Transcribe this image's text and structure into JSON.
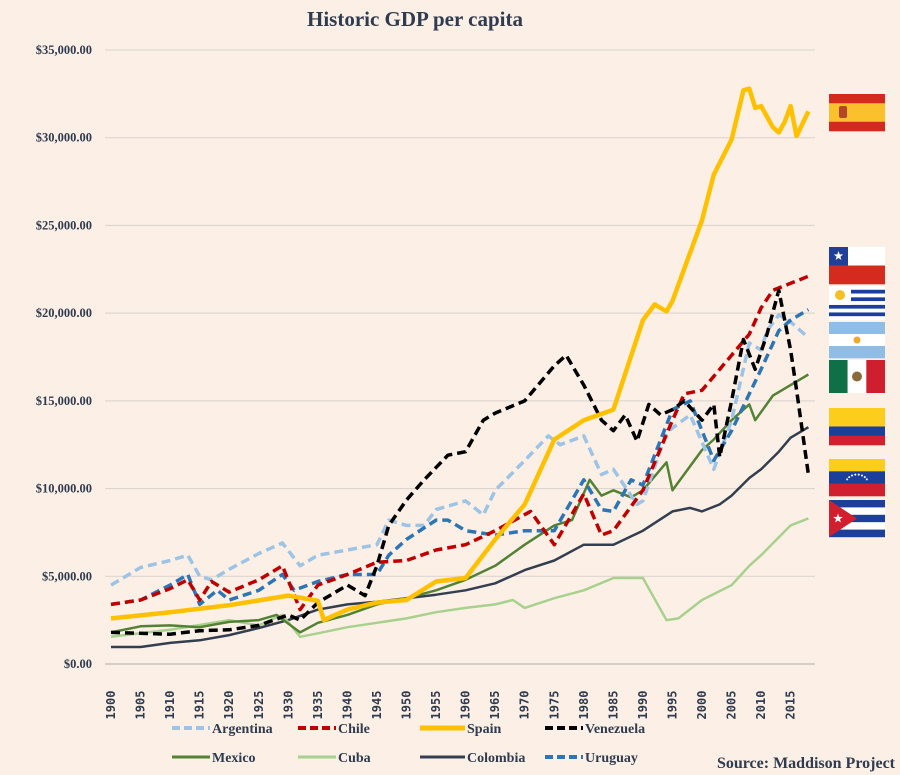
{
  "chart_data": {
    "type": "line",
    "title": "Historic GDP per capita",
    "xlabel": "",
    "ylabel": "",
    "xlim": [
      1900,
      2018
    ],
    "ylim": [
      0,
      35000
    ],
    "y_ticks": [
      "$0.00",
      "$5,000.00",
      "$10,000.00",
      "$15,000.00",
      "$20,000.00",
      "$25,000.00",
      "$30,000.00",
      "$35,000.00"
    ],
    "x_ticks": [
      "1900",
      "1905",
      "1910",
      "1915",
      "1920",
      "1925",
      "1930",
      "1935",
      "1940",
      "1945",
      "1950",
      "1955",
      "1960",
      "1965",
      "1970",
      "1975",
      "1980",
      "1985",
      "1990",
      "1995",
      "2000",
      "2005",
      "2010",
      "2015"
    ],
    "grid": true,
    "legend_placement": "bottom",
    "source": "Source: Maddison Project",
    "series": [
      {
        "name": "Argentina",
        "color": "#9dc3e6",
        "style": "dashed",
        "points": [
          [
            1900,
            4500
          ],
          [
            1905,
            5500
          ],
          [
            1910,
            5900
          ],
          [
            1913,
            6200
          ],
          [
            1915,
            5000
          ],
          [
            1917,
            4800
          ],
          [
            1920,
            5400
          ],
          [
            1925,
            6300
          ],
          [
            1929,
            6900
          ],
          [
            1932,
            5600
          ],
          [
            1935,
            6200
          ],
          [
            1940,
            6500
          ],
          [
            1945,
            6800
          ],
          [
            1947,
            8200
          ],
          [
            1950,
            7900
          ],
          [
            1953,
            7900
          ],
          [
            1955,
            8800
          ],
          [
            1960,
            9300
          ],
          [
            1963,
            8500
          ],
          [
            1965,
            9900
          ],
          [
            1970,
            11600
          ],
          [
            1974,
            13000
          ],
          [
            1976,
            12500
          ],
          [
            1980,
            13000
          ],
          [
            1983,
            10800
          ],
          [
            1985,
            11100
          ],
          [
            1989,
            9100
          ],
          [
            1990,
            9300
          ],
          [
            1994,
            13200
          ],
          [
            1998,
            14200
          ],
          [
            2002,
            11100
          ],
          [
            2005,
            13900
          ],
          [
            2008,
            18300
          ],
          [
            2010,
            17900
          ],
          [
            2011,
            19000
          ],
          [
            2013,
            19900
          ],
          [
            2015,
            19500
          ],
          [
            2018,
            18600
          ]
        ]
      },
      {
        "name": "Chile",
        "color": "#c00000",
        "style": "dashed",
        "points": [
          [
            1900,
            3400
          ],
          [
            1905,
            3650
          ],
          [
            1910,
            4300
          ],
          [
            1913,
            4800
          ],
          [
            1915,
            3650
          ],
          [
            1917,
            4700
          ],
          [
            1920,
            4100
          ],
          [
            1925,
            4800
          ],
          [
            1929,
            5600
          ],
          [
            1932,
            3100
          ],
          [
            1935,
            4500
          ],
          [
            1940,
            5100
          ],
          [
            1945,
            5800
          ],
          [
            1950,
            5900
          ],
          [
            1955,
            6500
          ],
          [
            1960,
            6800
          ],
          [
            1965,
            7600
          ],
          [
            1971,
            8700
          ],
          [
            1975,
            6800
          ],
          [
            1980,
            9700
          ],
          [
            1983,
            7350
          ],
          [
            1985,
            7600
          ],
          [
            1990,
            9900
          ],
          [
            1995,
            13900
          ],
          [
            1997,
            15400
          ],
          [
            2000,
            15600
          ],
          [
            2005,
            17600
          ],
          [
            2008,
            18800
          ],
          [
            2010,
            20300
          ],
          [
            2012,
            21300
          ],
          [
            2015,
            21700
          ],
          [
            2018,
            22100
          ]
        ]
      },
      {
        "name": "Spain",
        "color": "#ffc000",
        "style": "solid",
        "points": [
          [
            1900,
            2600
          ],
          [
            1910,
            2950
          ],
          [
            1920,
            3350
          ],
          [
            1930,
            3900
          ],
          [
            1935,
            3600
          ],
          [
            1936,
            2500
          ],
          [
            1940,
            3100
          ],
          [
            1945,
            3500
          ],
          [
            1950,
            3650
          ],
          [
            1955,
            4700
          ],
          [
            1960,
            4900
          ],
          [
            1965,
            7100
          ],
          [
            1970,
            9100
          ],
          [
            1975,
            12800
          ],
          [
            1980,
            13900
          ],
          [
            1985,
            14500
          ],
          [
            1990,
            19600
          ],
          [
            1992,
            20500
          ],
          [
            1994,
            20100
          ],
          [
            1995,
            20700
          ],
          [
            2000,
            25300
          ],
          [
            2002,
            27900
          ],
          [
            2005,
            29900
          ],
          [
            2007,
            32700
          ],
          [
            2008,
            32800
          ],
          [
            2009,
            31700
          ],
          [
            2010,
            31800
          ],
          [
            2012,
            30600
          ],
          [
            2013,
            30300
          ],
          [
            2014,
            30900
          ],
          [
            2015,
            31800
          ],
          [
            2016,
            30100
          ],
          [
            2018,
            31500
          ]
        ]
      },
      {
        "name": "Venezuela",
        "color": "#000000",
        "style": "dashed",
        "points": [
          [
            1900,
            1800
          ],
          [
            1910,
            1700
          ],
          [
            1915,
            1900
          ],
          [
            1920,
            1950
          ],
          [
            1925,
            2200
          ],
          [
            1930,
            2800
          ],
          [
            1932,
            2500
          ],
          [
            1935,
            3500
          ],
          [
            1940,
            4500
          ],
          [
            1943,
            3900
          ],
          [
            1945,
            5600
          ],
          [
            1947,
            7900
          ],
          [
            1950,
            9350
          ],
          [
            1953,
            10500
          ],
          [
            1957,
            11900
          ],
          [
            1960,
            12100
          ],
          [
            1963,
            13900
          ],
          [
            1965,
            14300
          ],
          [
            1970,
            15000
          ],
          [
            1975,
            17000
          ],
          [
            1977,
            17600
          ],
          [
            1980,
            15900
          ],
          [
            1983,
            13900
          ],
          [
            1985,
            13300
          ],
          [
            1987,
            14200
          ],
          [
            1989,
            12700
          ],
          [
            1991,
            14800
          ],
          [
            1993,
            14200
          ],
          [
            1995,
            14500
          ],
          [
            1997,
            15000
          ],
          [
            2000,
            13900
          ],
          [
            2002,
            14800
          ],
          [
            2003,
            11800
          ],
          [
            2005,
            15000
          ],
          [
            2007,
            18500
          ],
          [
            2009,
            16800
          ],
          [
            2011,
            18800
          ],
          [
            2013,
            21300
          ],
          [
            2015,
            17900
          ],
          [
            2016,
            15600
          ],
          [
            2018,
            10800
          ]
        ]
      },
      {
        "name": "Mexico",
        "color": "#548235",
        "style": "solid",
        "points": [
          [
            1900,
            1800
          ],
          [
            1905,
            2150
          ],
          [
            1910,
            2200
          ],
          [
            1915,
            2100
          ],
          [
            1920,
            2400
          ],
          [
            1925,
            2500
          ],
          [
            1928,
            2800
          ],
          [
            1932,
            1800
          ],
          [
            1935,
            2350
          ],
          [
            1940,
            2800
          ],
          [
            1945,
            3400
          ],
          [
            1950,
            3750
          ],
          [
            1955,
            4200
          ],
          [
            1960,
            4800
          ],
          [
            1965,
            5600
          ],
          [
            1970,
            6800
          ],
          [
            1975,
            7900
          ],
          [
            1978,
            8200
          ],
          [
            1981,
            10500
          ],
          [
            1983,
            9600
          ],
          [
            1985,
            9900
          ],
          [
            1988,
            9500
          ],
          [
            1990,
            9900
          ],
          [
            1994,
            11500
          ],
          [
            1995,
            9900
          ],
          [
            2000,
            12200
          ],
          [
            2002,
            12800
          ],
          [
            2005,
            13900
          ],
          [
            2008,
            14800
          ],
          [
            2009,
            13900
          ],
          [
            2012,
            15300
          ],
          [
            2015,
            15900
          ],
          [
            2018,
            16500
          ]
        ]
      },
      {
        "name": "Cuba",
        "color": "#a9d18e",
        "style": "solid",
        "points": [
          [
            1900,
            1550
          ],
          [
            1910,
            1950
          ],
          [
            1920,
            2500
          ],
          [
            1925,
            2200
          ],
          [
            1929,
            2800
          ],
          [
            1932,
            1550
          ],
          [
            1935,
            1750
          ],
          [
            1940,
            2100
          ],
          [
            1945,
            2350
          ],
          [
            1950,
            2600
          ],
          [
            1955,
            2950
          ],
          [
            1960,
            3200
          ],
          [
            1965,
            3400
          ],
          [
            1968,
            3650
          ],
          [
            1970,
            3200
          ],
          [
            1975,
            3750
          ],
          [
            1980,
            4200
          ],
          [
            1985,
            4900
          ],
          [
            1990,
            4900
          ],
          [
            1994,
            2500
          ],
          [
            1996,
            2600
          ],
          [
            2000,
            3650
          ],
          [
            2005,
            4500
          ],
          [
            2008,
            5600
          ],
          [
            2010,
            6200
          ],
          [
            2015,
            7900
          ],
          [
            2018,
            8300
          ]
        ]
      },
      {
        "name": "Colombia",
        "color": "#333f50",
        "style": "solid",
        "points": [
          [
            1900,
            970
          ],
          [
            1905,
            970
          ],
          [
            1910,
            1200
          ],
          [
            1915,
            1350
          ],
          [
            1920,
            1650
          ],
          [
            1925,
            2050
          ],
          [
            1930,
            2500
          ],
          [
            1935,
            3100
          ],
          [
            1940,
            3400
          ],
          [
            1945,
            3550
          ],
          [
            1950,
            3750
          ],
          [
            1955,
            3950
          ],
          [
            1960,
            4200
          ],
          [
            1965,
            4600
          ],
          [
            1970,
            5350
          ],
          [
            1975,
            5900
          ],
          [
            1980,
            6800
          ],
          [
            1985,
            6800
          ],
          [
            1990,
            7600
          ],
          [
            1995,
            8700
          ],
          [
            1998,
            8900
          ],
          [
            2000,
            8700
          ],
          [
            2003,
            9100
          ],
          [
            2005,
            9600
          ],
          [
            2008,
            10600
          ],
          [
            2010,
            11100
          ],
          [
            2013,
            12100
          ],
          [
            2015,
            12900
          ],
          [
            2018,
            13500
          ]
        ]
      },
      {
        "name": "Uruguay",
        "color": "#2e75b6",
        "style": "dashed",
        "points": [
          [
            1900,
            3400
          ],
          [
            1905,
            3650
          ],
          [
            1910,
            4500
          ],
          [
            1913,
            5100
          ],
          [
            1915,
            3400
          ],
          [
            1918,
            4200
          ],
          [
            1920,
            3650
          ],
          [
            1925,
            4200
          ],
          [
            1929,
            5100
          ],
          [
            1931,
            4200
          ],
          [
            1935,
            4700
          ],
          [
            1940,
            5100
          ],
          [
            1945,
            5100
          ],
          [
            1947,
            6200
          ],
          [
            1950,
            7100
          ],
          [
            1955,
            8200
          ],
          [
            1957,
            8200
          ],
          [
            1960,
            7600
          ],
          [
            1965,
            7350
          ],
          [
            1970,
            7600
          ],
          [
            1975,
            7600
          ],
          [
            1980,
            10500
          ],
          [
            1983,
            8800
          ],
          [
            1985,
            8700
          ],
          [
            1988,
            10500
          ],
          [
            1990,
            10200
          ],
          [
            1995,
            14500
          ],
          [
            1998,
            15000
          ],
          [
            2002,
            11600
          ],
          [
            2005,
            13300
          ],
          [
            2010,
            16800
          ],
          [
            2013,
            19000
          ],
          [
            2015,
            19600
          ],
          [
            2018,
            20200
          ]
        ]
      }
    ],
    "flags": [
      "spain",
      "chile",
      "uruguay",
      "argentina",
      "mexico",
      "colombia",
      "venezuela",
      "cuba"
    ]
  }
}
